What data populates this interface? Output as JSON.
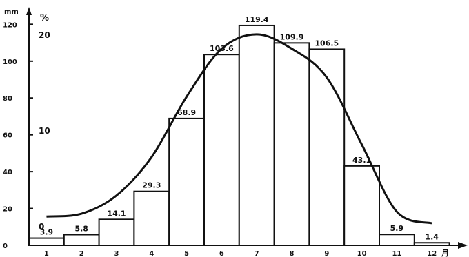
{
  "chart_data": {
    "type": "bar",
    "categories": [
      "1",
      "2",
      "3",
      "4",
      "5",
      "6",
      "7",
      "8",
      "9",
      "10",
      "11",
      "12"
    ],
    "x_unit_label": "月",
    "series": [
      {
        "values": [
          3.9,
          5.8,
          14.1,
          29.3,
          68.9,
          103.6,
          119.4,
          109.9,
          106.5,
          43.1,
          5.9,
          1.4
        ],
        "value_labels": [
          "3.9",
          "5.8",
          "14.1",
          "29.3",
          "68.9",
          "103.6",
          "119.4",
          "109.9",
          "106.5",
          "43.1",
          "5.9",
          "1.4"
        ],
        "axis": "left"
      },
      {
        "type": "line",
        "axis": "right",
        "values": [
          1.0,
          1.3,
          3.2,
          7.2,
          13.5,
          18.5,
          20.0,
          18.5,
          15.5,
          8.5,
          1.5,
          0.3
        ]
      }
    ],
    "left_axis": {
      "unit": "mm",
      "ticks": [
        "0",
        "20",
        "40",
        "60",
        "80",
        "100",
        "120"
      ],
      "ylim": [
        0,
        125
      ]
    },
    "right_axis": {
      "unit": "%",
      "ticks": [
        "0",
        "10",
        "20"
      ],
      "ylim": [
        -2,
        22
      ]
    },
    "grid": false,
    "colors": {
      "bars": "#ffffff",
      "outline": "#111111",
      "line": "#111111"
    }
  }
}
